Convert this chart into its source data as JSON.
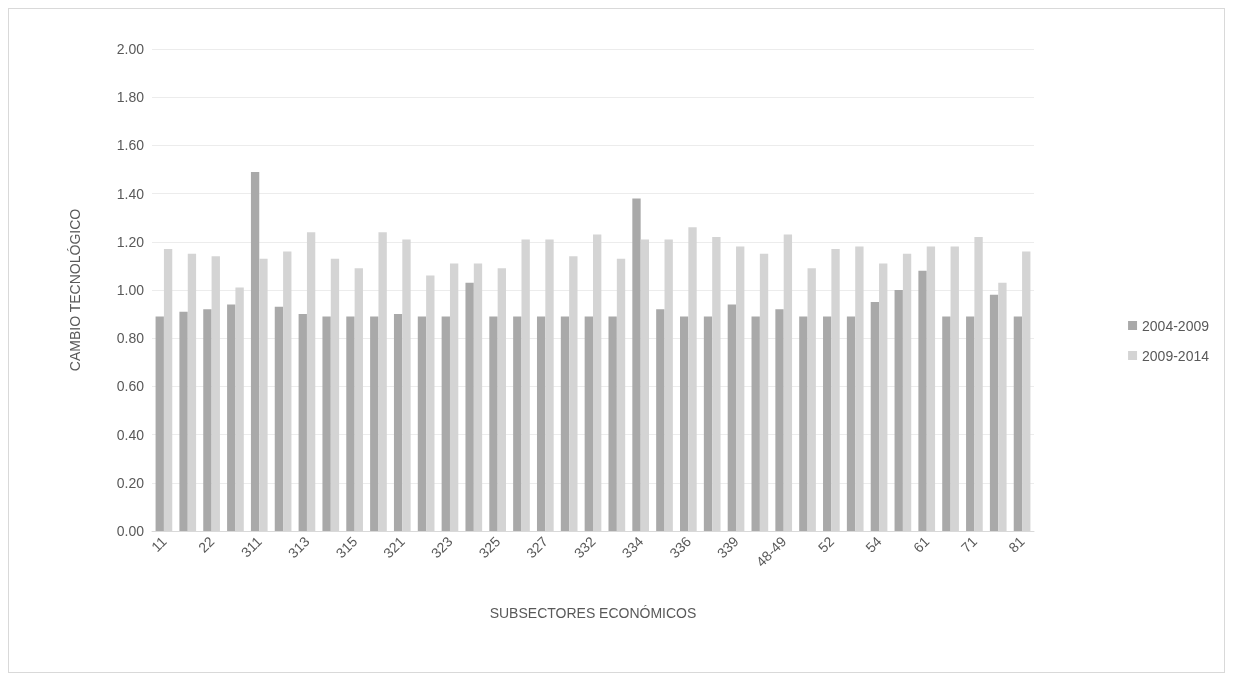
{
  "chart_data": {
    "type": "bar",
    "xlabel": "SUBSECTORES ECONÓMICOS",
    "ylabel": "CAMBIO TECNOLÓGICO",
    "categories": [
      "11",
      null,
      "22",
      null,
      "311",
      null,
      "313",
      null,
      "315",
      null,
      "321",
      null,
      "323",
      null,
      "325",
      null,
      "327",
      null,
      "332",
      null,
      "334",
      null,
      "336",
      null,
      "339",
      null,
      "48-49",
      null,
      "52",
      null,
      "54",
      null,
      "61",
      null,
      "71",
      null,
      "81"
    ],
    "series": [
      {
        "name": "2004-2009",
        "color": "#a9a9a9",
        "values": [
          0.89,
          0.91,
          0.92,
          0.94,
          1.49,
          0.93,
          0.9,
          0.89,
          0.89,
          0.89,
          0.9,
          0.89,
          0.89,
          1.03,
          0.89,
          0.89,
          0.89,
          0.89,
          0.89,
          0.89,
          1.38,
          0.92,
          0.89,
          0.89,
          0.94,
          0.89,
          0.92,
          0.89,
          0.89,
          0.89,
          0.95,
          1.0,
          1.08,
          0.89,
          0.89,
          0.98,
          0.89
        ]
      },
      {
        "name": "2009-2014",
        "color": "#d4d4d4",
        "values": [
          1.17,
          1.15,
          1.14,
          1.01,
          1.13,
          1.16,
          1.24,
          1.13,
          1.09,
          1.24,
          1.21,
          1.06,
          1.11,
          1.11,
          1.09,
          1.21,
          1.21,
          1.14,
          1.23,
          1.13,
          1.21,
          1.21,
          1.26,
          1.22,
          1.18,
          1.15,
          1.23,
          1.09,
          1.17,
          1.18,
          1.11,
          1.15,
          1.18,
          1.18,
          1.22,
          1.03,
          1.16
        ]
      }
    ],
    "ylim": [
      0,
      2
    ],
    "yticks": [
      {
        "value": 0,
        "label": "0.00"
      },
      {
        "value": 0.2,
        "label": "0.20"
      },
      {
        "value": 0.4,
        "label": "0.40"
      },
      {
        "value": 0.6,
        "label": "0.60"
      },
      {
        "value": 0.8,
        "label": "0.80"
      },
      {
        "value": 1,
        "label": "1.00"
      },
      {
        "value": 1.2,
        "label": "1.20"
      },
      {
        "value": 1.4,
        "label": "1.40"
      },
      {
        "value": 1.6,
        "label": "1.60"
      },
      {
        "value": 1.8,
        "label": "1.80"
      },
      {
        "value": 2,
        "label": "2.00"
      }
    ],
    "grid": "y",
    "legend": "right"
  }
}
